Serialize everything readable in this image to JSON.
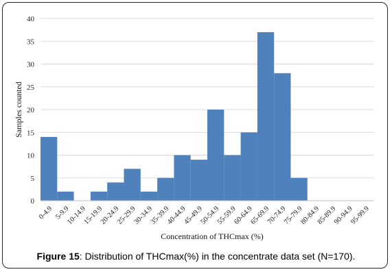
{
  "chart_data": {
    "type": "bar",
    "categories": [
      "0-4.9",
      "5-9.9",
      "10-14.9",
      "15-19.9",
      "20-24.9",
      "25-29.9",
      "30-34.9",
      "35-39.9",
      "40-44.9",
      "45-49.9",
      "50-54.9",
      "55-59.9",
      "60-64.9",
      "65-69.9",
      "70-74.9",
      "75-79.9",
      "80-84.9",
      "85-89.9",
      "90-94.9",
      "95-99.9"
    ],
    "values": [
      14,
      2,
      0,
      2,
      4,
      7,
      2,
      5,
      10,
      9,
      20,
      10,
      15,
      37,
      28,
      5,
      0,
      0,
      0,
      0
    ],
    "title": "",
    "xlabel": "Concentration of THCmax (%)",
    "ylabel": "Samples counted",
    "ylim": [
      0,
      40
    ],
    "yticks": [
      0,
      5,
      10,
      15,
      20,
      25,
      30,
      35,
      40
    ],
    "grid": true,
    "bar_color": "#4f81bd",
    "grid_color": "#d9d9d9"
  },
  "caption": {
    "label": "Figure 15",
    "text": ": Distribution of THCmax(%) in the concentrate data set (N=170)."
  }
}
